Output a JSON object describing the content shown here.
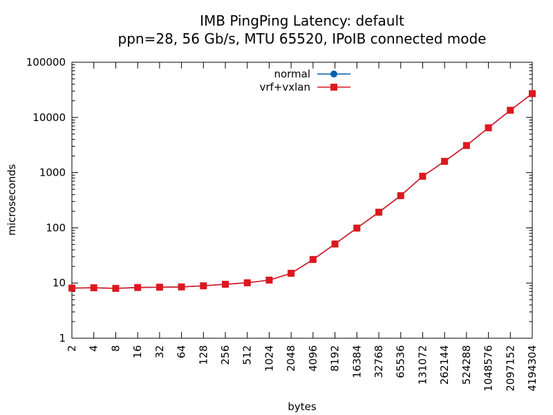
{
  "chart_data": {
    "type": "line",
    "title": "IMB PingPing Latency: default",
    "subtitle": "ppn=28, 56 Gb/s, MTU 65520, IPoIB connected mode",
    "xlabel": "bytes",
    "ylabel": "microseconds",
    "x_scale": "log",
    "y_scale": "log",
    "xlim": [
      2,
      4194304
    ],
    "ylim": [
      1,
      100000
    ],
    "x_tick_labels": [
      "2",
      "4",
      "8",
      "16",
      "32",
      "64",
      "128",
      "256",
      "512",
      "1024",
      "2048",
      "4096",
      "8192",
      "16384",
      "32768",
      "65536",
      "131072",
      "262144",
      "524288",
      "1048576",
      "2097152",
      "4194304"
    ],
    "y_tick_labels": [
      "1",
      "10",
      "100",
      "1000",
      "10000",
      "100000"
    ],
    "legend_position": "top-center",
    "grid": false,
    "x": [
      2,
      4,
      8,
      16,
      32,
      64,
      128,
      256,
      512,
      1024,
      2048,
      4096,
      8192,
      16384,
      32768,
      65536,
      131072,
      262144,
      524288,
      1048576,
      2097152,
      4194304
    ],
    "series": [
      {
        "name": "normal",
        "color": "#0060ad",
        "marker": "circle",
        "values": [
          8.1,
          8.2,
          8.0,
          8.3,
          8.4,
          8.5,
          8.9,
          9.5,
          10.1,
          11.3,
          15.0,
          26.7,
          51.0,
          99.0,
          192.0,
          383.0,
          860.0,
          1600.0,
          3100.0,
          6500.0,
          13500.0,
          27000.0
        ]
      },
      {
        "name": "vrf+vxlan",
        "color": "#dd181f",
        "marker": "square",
        "values": [
          8.1,
          8.2,
          8.0,
          8.3,
          8.4,
          8.5,
          8.9,
          9.5,
          10.1,
          11.3,
          15.0,
          26.7,
          51.0,
          99.0,
          192.0,
          383.0,
          860.0,
          1600.0,
          3100.0,
          6500.0,
          13500.0,
          27000.0
        ]
      }
    ]
  }
}
